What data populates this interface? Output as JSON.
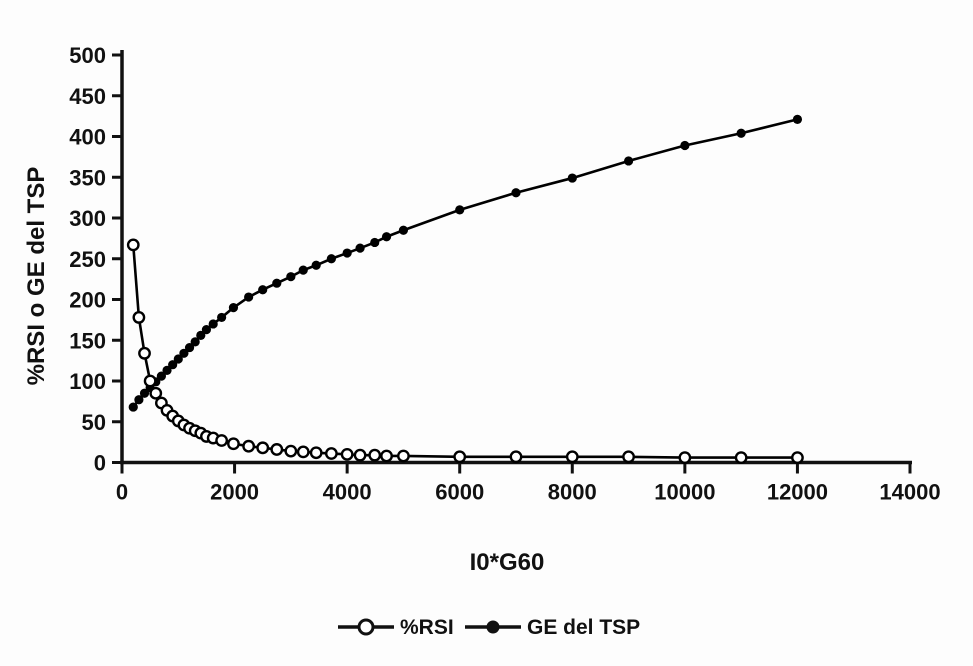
{
  "figure": {
    "background": "#fdfdfd",
    "ink_color": "#111111"
  },
  "chart_data": {
    "type": "line",
    "title": "",
    "xlabel": "I0*G60",
    "ylabel": "%RSI o GE del TSP",
    "xlim": [
      0,
      14000
    ],
    "ylim": [
      0,
      500
    ],
    "xticks": [
      0,
      2000,
      4000,
      6000,
      8000,
      10000,
      12000,
      14000
    ],
    "yticks": [
      0,
      50,
      100,
      150,
      200,
      250,
      300,
      350,
      400,
      450,
      500
    ],
    "grid": false,
    "legend_position": "bottom-center",
    "x": [
      200,
      300,
      400,
      500,
      600,
      700,
      800,
      900,
      1000,
      1100,
      1200,
      1300,
      1400,
      1500,
      1620,
      1770,
      1980,
      2250,
      2500,
      2750,
      3000,
      3220,
      3450,
      3720,
      4000,
      4230,
      4490,
      4700,
      5000,
      6000,
      7000,
      8000,
      9000,
      10000,
      11000,
      12000
    ],
    "series": [
      {
        "name": "%RSI",
        "marker": "open-circle",
        "color": "#000000",
        "marker_fill": "#ffffff",
        "values": [
          267,
          178,
          134,
          100,
          85,
          73,
          64,
          57,
          51,
          46,
          42,
          39,
          36,
          32,
          30,
          27,
          23,
          20,
          18,
          16,
          14,
          13,
          12,
          11,
          10,
          9,
          9,
          8,
          8,
          7,
          7,
          7,
          7,
          6,
          6,
          6
        ]
      },
      {
        "name": "GE del TSP",
        "marker": "filled-circle",
        "color": "#000000",
        "marker_fill": "#000000",
        "values": [
          68,
          77,
          85,
          92,
          99,
          106,
          113,
          120,
          127,
          134,
          141,
          148,
          156,
          163,
          170,
          178,
          190,
          203,
          212,
          220,
          228,
          236,
          242,
          250,
          257,
          263,
          270,
          277,
          285,
          310,
          331,
          349,
          370,
          389,
          404,
          421
        ]
      }
    ]
  }
}
